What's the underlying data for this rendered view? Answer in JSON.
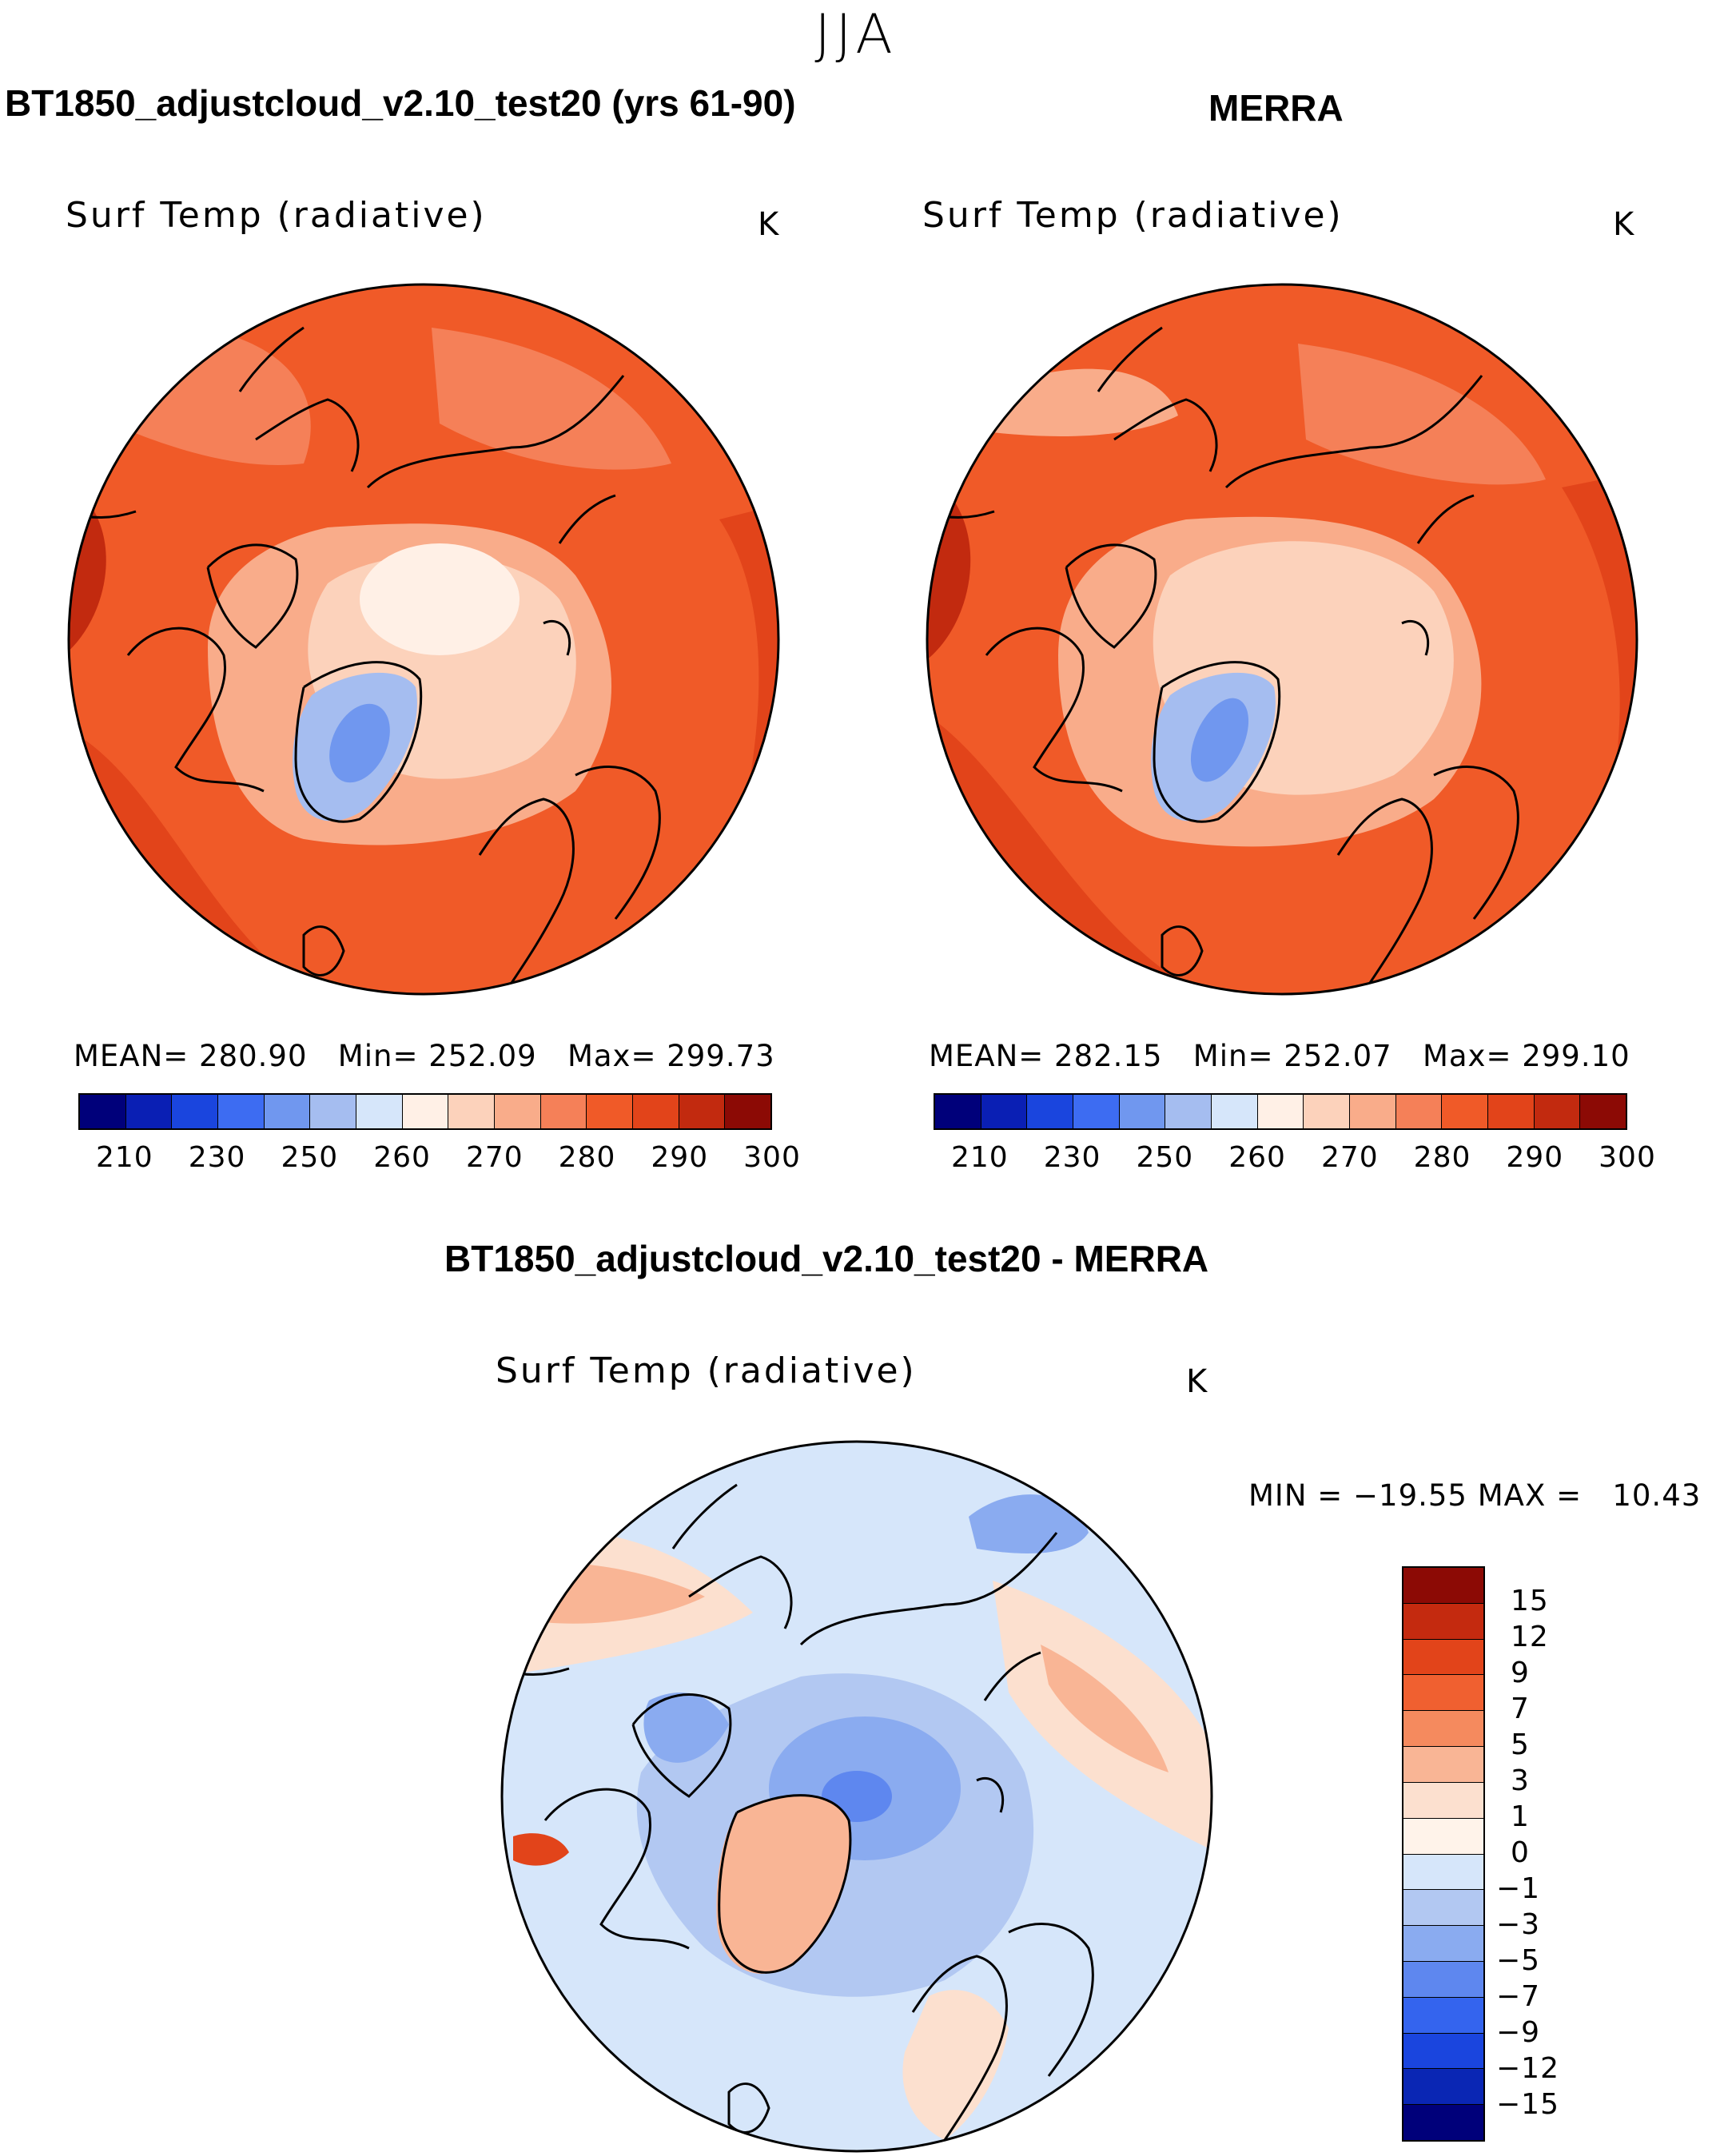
{
  "figure": {
    "season": "JJA"
  },
  "panels": {
    "model": {
      "title": "BT1850_adjustcloud_v2.10_test20 (yrs 61-90)",
      "variable": "Surf Temp (radiative)",
      "units": "K",
      "stats_text": "MEAN= 280.90   Min= 252.09   Max= 299.73"
    },
    "obs": {
      "title": "MERRA",
      "variable": "Surf Temp (radiative)",
      "units": "K",
      "stats_text": "MEAN= 282.15   Min= 252.07   Max= 299.10"
    },
    "diff": {
      "title": "BT1850_adjustcloud_v2.10_test20 - MERRA",
      "variable": "Surf Temp (radiative)",
      "units": "K",
      "stats_text": "MIN = −19.55 MAX =   10.43"
    }
  },
  "colorbars": {
    "absolute": {
      "colors": [
        "#00007a",
        "#0a1fb4",
        "#1a45de",
        "#3d6cf2",
        "#7097ef",
        "#a5bdf0",
        "#d6e6fa",
        "#fff0e6",
        "#fcd2bb",
        "#f9ac8a",
        "#f58058",
        "#f05a28",
        "#e2441a",
        "#c22a0f",
        "#8c0a05"
      ],
      "ticks": [
        "210",
        "230",
        "250",
        "260",
        "270",
        "280",
        "290",
        "300"
      ]
    },
    "difference": {
      "colors": [
        "#8c0a05",
        "#c42a0f",
        "#e2441a",
        "#f06030",
        "#f58a5e",
        "#f9b595",
        "#fce0cf",
        "#fff3ea",
        "#d6e6fa",
        "#b2c8f2",
        "#8aabf0",
        "#5e87ef",
        "#3464ee",
        "#1a45de",
        "#0a26b4",
        "#00007a"
      ],
      "ticks": [
        "15",
        "12",
        "9",
        "7",
        "5",
        "3",
        "1",
        "0",
        "−1",
        "−3",
        "−5",
        "−7",
        "−9",
        "−12",
        "−15"
      ]
    }
  }
}
